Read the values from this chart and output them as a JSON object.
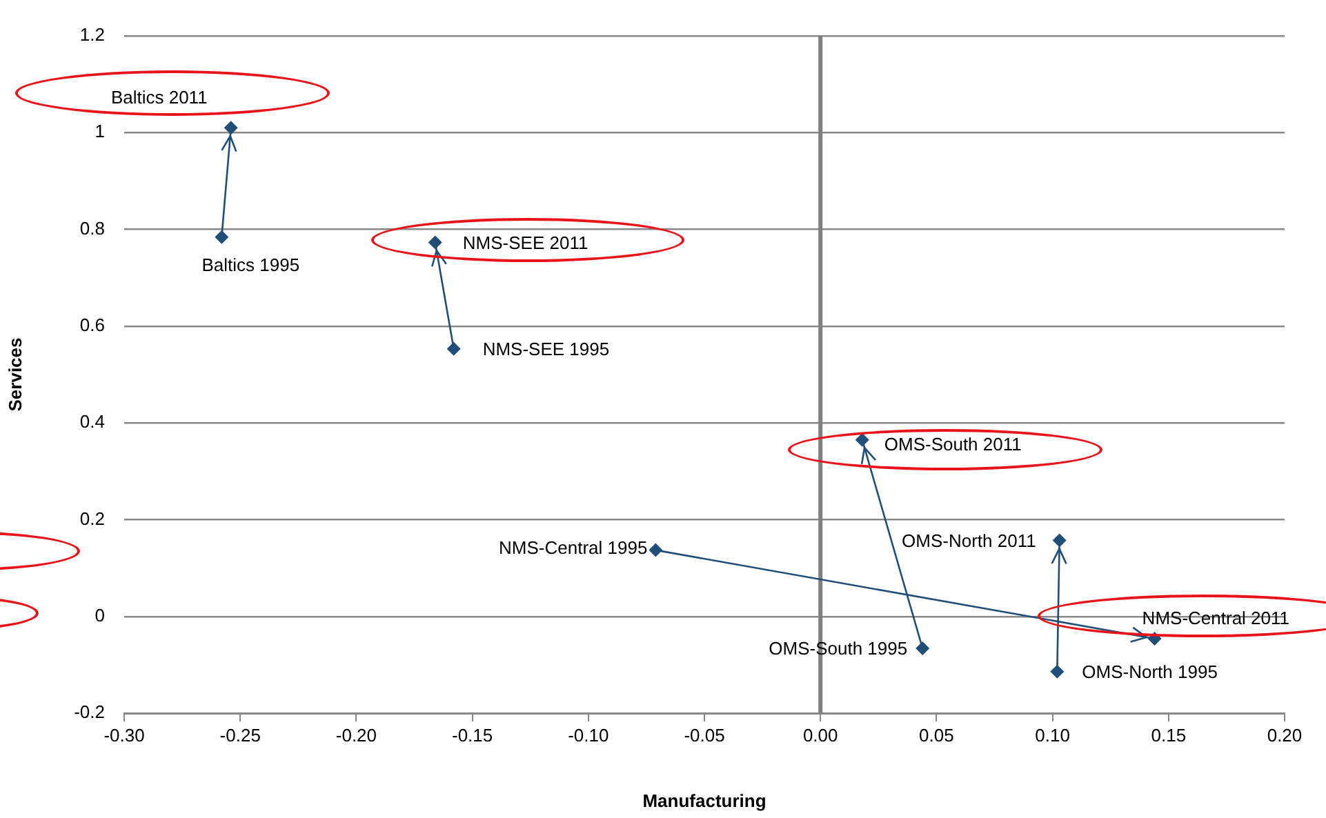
{
  "chart_data": {
    "type": "line",
    "xlabel": "Manufacturing",
    "ylabel": "Services",
    "series": [
      {
        "color": "#1f4e79",
        "x": [
          -0.258,
          -0.254
        ],
        "values": [
          0.784,
          1.01
        ]
      },
      {
        "color": "#1f4e79",
        "x": [
          -0.158,
          -0.166
        ],
        "values": [
          0.553,
          0.773
        ]
      },
      {
        "color": "#1f4e79",
        "x": [
          -0.071,
          0.144
        ],
        "values": [
          0.137,
          -0.046
        ]
      },
      {
        "color": "#1f4e79",
        "x": [
          0.044,
          0.018
        ],
        "values": [
          -0.066,
          0.365
        ]
      },
      {
        "color": "#1f4e79",
        "x": [
          0.102,
          0.103
        ],
        "values": [
          -0.114,
          0.157
        ]
      }
    ],
    "marker": "diamond",
    "xlim": [
      -0.3,
      0.2
    ],
    "xticks": [
      {
        "value": -0.3,
        "label": "-0.30"
      },
      {
        "value": -0.25,
        "label": "-0.25"
      },
      {
        "value": -0.2,
        "label": "-0.20"
      },
      {
        "value": -0.15,
        "label": "-0.15"
      },
      {
        "value": -0.1,
        "label": "-0.10"
      },
      {
        "value": -0.05,
        "label": "-0.05"
      },
      {
        "value": 0,
        "label": "0.00"
      },
      {
        "value": 0.05,
        "label": "0.05"
      },
      {
        "value": 0.1,
        "label": "0.10"
      },
      {
        "value": 0.15,
        "label": "0.15"
      },
      {
        "value": 0.2,
        "label": "0.20"
      }
    ],
    "ylim": [
      -0.2,
      1.2
    ],
    "yticks": [
      -0.2,
      0,
      0.2,
      0.4,
      0.6,
      0.8,
      1,
      1.2
    ],
    "grid": "y",
    "legend": false,
    "ref_lines": [
      {
        "axis": "x",
        "value": 0,
        "color": "#808080"
      }
    ],
    "annotations": [
      {
        "text": "Baltics 1995",
        "x": -0.258,
        "y": 0.784
      },
      {
        "text": "Baltics 2011",
        "x": -0.254,
        "y": 1.01
      },
      {
        "text": "NMS-SEE 1995",
        "x": -0.158,
        "y": 0.553
      },
      {
        "text": "NMS-SEE 2011",
        "x": -0.166,
        "y": 0.773
      },
      {
        "text": "NMS-Central 1995",
        "x": -0.071,
        "y": 0.137
      },
      {
        "text": "NMS-Central 2011",
        "x": 0.144,
        "y": -0.046
      },
      {
        "text": "OMS-South 1995",
        "x": 0.044,
        "y": -0.066
      },
      {
        "text": "OMS-South 2011",
        "x": 0.018,
        "y": 0.365
      },
      {
        "text": "OMS-North 1995",
        "x": 0.102,
        "y": -0.114
      },
      {
        "text": "OMS-North 2011",
        "x": 0.103,
        "y": 0.157
      }
    ]
  }
}
